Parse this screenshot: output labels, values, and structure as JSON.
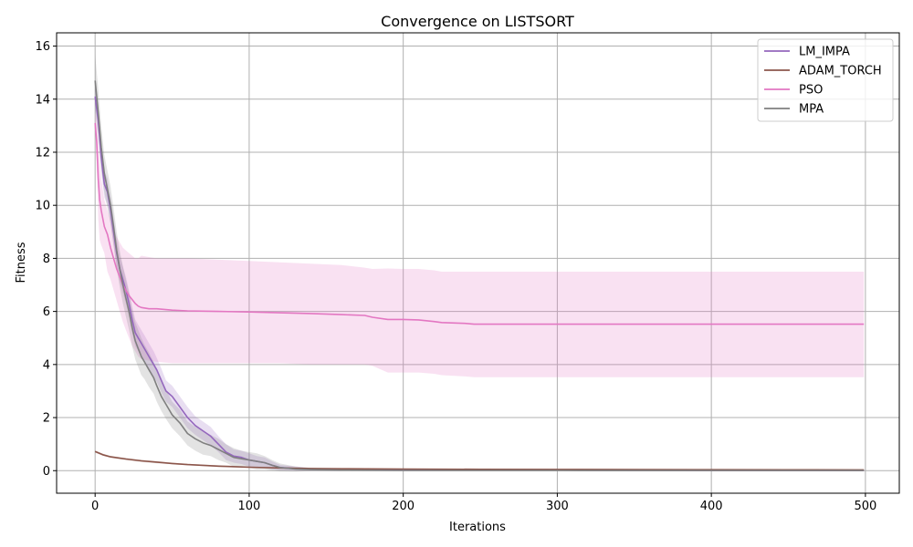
{
  "chart_data": {
    "type": "line",
    "title": "Convergence on LISTSORT",
    "xlabel": "Iterations",
    "ylabel": "Fitness",
    "xlim": [
      -25,
      522
    ],
    "ylim": [
      -0.85,
      16.5
    ],
    "xticks": [
      0,
      100,
      200,
      300,
      400,
      500
    ],
    "yticks": [
      0,
      2,
      4,
      6,
      8,
      10,
      12,
      14,
      16
    ],
    "grid": true,
    "legend_position": "top-right",
    "series": [
      {
        "name": "LM_IMPA",
        "color": "#9467bd",
        "x": [
          0,
          2,
          4,
          6,
          8,
          10,
          12,
          14,
          16,
          18,
          20,
          22,
          24,
          26,
          28,
          30,
          32,
          35,
          38,
          40,
          43,
          46,
          50,
          55,
          60,
          65,
          70,
          75,
          80,
          85,
          90,
          95,
          100,
          105,
          110,
          115,
          120,
          130,
          140,
          160,
          200,
          300,
          400,
          499
        ],
        "y": [
          14.1,
          13.2,
          11.8,
          10.8,
          10.5,
          9.8,
          9.0,
          8.2,
          7.6,
          7.2,
          6.8,
          6.3,
          5.7,
          5.2,
          5.0,
          4.8,
          4.6,
          4.3,
          4.0,
          3.8,
          3.4,
          3.0,
          2.8,
          2.4,
          2.0,
          1.7,
          1.5,
          1.3,
          1.0,
          0.7,
          0.55,
          0.5,
          0.4,
          0.35,
          0.3,
          0.2,
          0.12,
          0.08,
          0.05,
          0.03,
          0.02,
          0.02,
          0.01,
          0.01
        ],
        "band": [
          0.55,
          0.55,
          0.55,
          0.5,
          0.5,
          0.5,
          0.5,
          0.5,
          0.5,
          0.5,
          0.5,
          0.5,
          0.5,
          0.5,
          0.5,
          0.5,
          0.5,
          0.5,
          0.5,
          0.45,
          0.45,
          0.4,
          0.4,
          0.4,
          0.4,
          0.35,
          0.35,
          0.35,
          0.3,
          0.3,
          0.25,
          0.25,
          0.25,
          0.2,
          0.2,
          0.15,
          0.1,
          0.08,
          0.05,
          0.03,
          0.02,
          0.02,
          0.01,
          0.01
        ]
      },
      {
        "name": "ADAM_TORCH",
        "color": "#8c564b",
        "x": [
          0,
          5,
          10,
          20,
          30,
          40,
          50,
          60,
          70,
          80,
          100,
          120,
          140,
          160,
          200,
          250,
          300,
          350,
          400,
          450,
          499
        ],
        "y": [
          0.72,
          0.6,
          0.52,
          0.44,
          0.37,
          0.32,
          0.27,
          0.23,
          0.2,
          0.17,
          0.13,
          0.1,
          0.08,
          0.07,
          0.06,
          0.05,
          0.045,
          0.04,
          0.035,
          0.032,
          0.03
        ],
        "band": [
          0.04,
          0.04,
          0.04,
          0.04,
          0.04,
          0.04,
          0.03,
          0.03,
          0.03,
          0.03,
          0.03,
          0.02,
          0.02,
          0.02,
          0.02,
          0.02,
          0.02,
          0.02,
          0.02,
          0.02,
          0.02
        ]
      },
      {
        "name": "PSO",
        "color": "#e377c2",
        "x": [
          0,
          1,
          2,
          3,
          4,
          6,
          8,
          10,
          12,
          14,
          16,
          18,
          20,
          22,
          24,
          26,
          28,
          30,
          35,
          40,
          50,
          60,
          80,
          100,
          120,
          140,
          160,
          175,
          180,
          190,
          200,
          210,
          220,
          225,
          240,
          246,
          300,
          400,
          499
        ],
        "y": [
          13.1,
          12.4,
          11.0,
          10.2,
          9.8,
          9.2,
          8.9,
          8.4,
          8.0,
          7.6,
          7.3,
          7.0,
          6.8,
          6.6,
          6.45,
          6.3,
          6.2,
          6.15,
          6.1,
          6.1,
          6.05,
          6.02,
          6.0,
          5.98,
          5.95,
          5.92,
          5.88,
          5.85,
          5.78,
          5.7,
          5.7,
          5.68,
          5.62,
          5.58,
          5.55,
          5.52,
          5.52,
          5.52,
          5.52
        ],
        "upper": [
          13.5,
          13.2,
          12.4,
          11.7,
          11.0,
          10.2,
          9.8,
          9.5,
          9.0,
          8.8,
          8.6,
          8.4,
          8.3,
          8.2,
          8.1,
          8.0,
          8.0,
          8.1,
          8.05,
          8.0,
          8.0,
          8.0,
          7.95,
          7.9,
          7.85,
          7.8,
          7.75,
          7.65,
          7.6,
          7.62,
          7.6,
          7.6,
          7.55,
          7.5,
          7.5,
          7.5,
          7.5,
          7.5,
          7.5
        ],
        "lower": [
          12.7,
          11.5,
          9.5,
          8.7,
          8.5,
          8.2,
          7.5,
          7.2,
          6.8,
          6.4,
          6.0,
          5.6,
          5.3,
          5.0,
          4.7,
          4.5,
          4.3,
          4.2,
          4.15,
          4.1,
          4.05,
          4.05,
          4.05,
          4.05,
          4.05,
          4.0,
          4.0,
          4.0,
          3.95,
          3.7,
          3.7,
          3.7,
          3.65,
          3.6,
          3.55,
          3.52,
          3.52,
          3.52,
          3.52
        ]
      },
      {
        "name": "MPA",
        "color": "#7f7f7f",
        "x": [
          0,
          2,
          4,
          6,
          8,
          10,
          12,
          14,
          16,
          18,
          20,
          22,
          24,
          26,
          28,
          30,
          32,
          35,
          38,
          40,
          43,
          46,
          50,
          55,
          60,
          65,
          70,
          75,
          80,
          85,
          90,
          95,
          100,
          105,
          110,
          115,
          120,
          130,
          140,
          160,
          200,
          300,
          400,
          499
        ],
        "y": [
          14.7,
          13.5,
          12.2,
          11.2,
          10.6,
          10.0,
          9.2,
          8.3,
          7.6,
          7.0,
          6.5,
          6.0,
          5.4,
          4.9,
          4.6,
          4.3,
          4.1,
          3.8,
          3.5,
          3.2,
          2.8,
          2.5,
          2.1,
          1.8,
          1.4,
          1.2,
          1.05,
          0.95,
          0.8,
          0.65,
          0.5,
          0.45,
          0.4,
          0.35,
          0.3,
          0.2,
          0.12,
          0.06,
          0.04,
          0.02,
          0.01,
          0.01,
          0.005,
          0.005
        ],
        "band": [
          1.0,
          0.9,
          0.8,
          0.7,
          0.7,
          0.7,
          0.7,
          0.7,
          0.7,
          0.7,
          0.7,
          0.7,
          0.7,
          0.7,
          0.7,
          0.7,
          0.65,
          0.65,
          0.6,
          0.6,
          0.55,
          0.55,
          0.5,
          0.5,
          0.45,
          0.45,
          0.45,
          0.4,
          0.4,
          0.35,
          0.35,
          0.3,
          0.3,
          0.3,
          0.25,
          0.2,
          0.15,
          0.1,
          0.06,
          0.04,
          0.02,
          0.01,
          0.01,
          0.01
        ]
      }
    ]
  }
}
